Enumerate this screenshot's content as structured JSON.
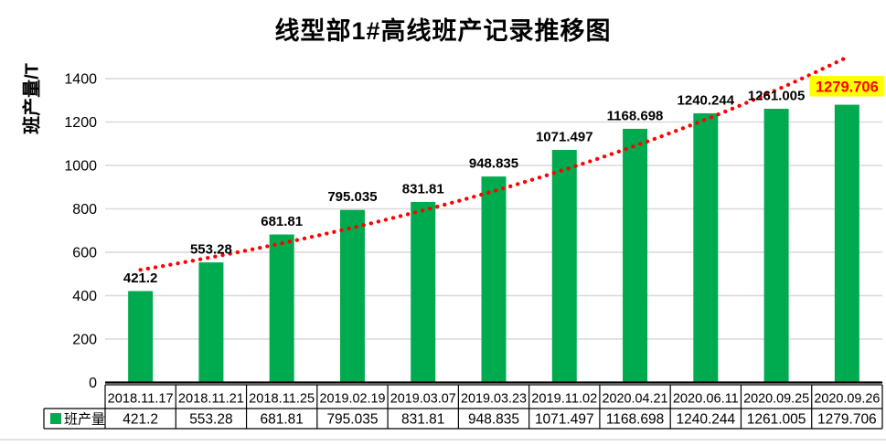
{
  "title": "线型部1#高线班产记录推移图",
  "chart_data": {
    "type": "bar",
    "title": "线型部1#高线班产记录推移图",
    "xlabel": "",
    "ylabel": "班产量/T",
    "categories": [
      "2018.11.17",
      "2018.11.21",
      "2018.11.25",
      "2019.02.19",
      "2019.03.07",
      "2019.03.23",
      "2019.11.02",
      "2020.04.21",
      "2020.06.11",
      "2020.09.25",
      "2020.09.26"
    ],
    "series": [
      {
        "name": "班产量",
        "values": [
          421.2,
          553.28,
          681.81,
          795.035,
          831.81,
          948.835,
          1071.497,
          1168.698,
          1240.244,
          1261.005,
          1279.706
        ]
      }
    ],
    "value_labels": [
      "421.2",
      "553.28",
      "681.81",
      "795.035",
      "831.81",
      "948.835",
      "1071.497",
      "1168.698",
      "1240.244",
      "1261.005",
      "1279.706"
    ],
    "ylim": [
      0,
      1500
    ],
    "yticks": [
      0,
      200,
      400,
      600,
      800,
      1000,
      1200,
      1400
    ],
    "grid": true,
    "legend_position": "data-table-left",
    "data_table_shown": true,
    "trendline": {
      "type": "exponential",
      "style": "dotted"
    },
    "highlighted_label": {
      "index": 10,
      "text": "1279.706"
    }
  },
  "colors": {
    "bar": "#00AB4F",
    "trendline": "#FF0000",
    "gridline": "#D9D9D9",
    "axis": "#000000",
    "table_border": "#000000",
    "text": "#000000",
    "highlight_bg": "#FFFF00",
    "highlight_text": "#FF0000",
    "bottom_border": "#D9D9D9",
    "background": "#FFFFFF"
  }
}
